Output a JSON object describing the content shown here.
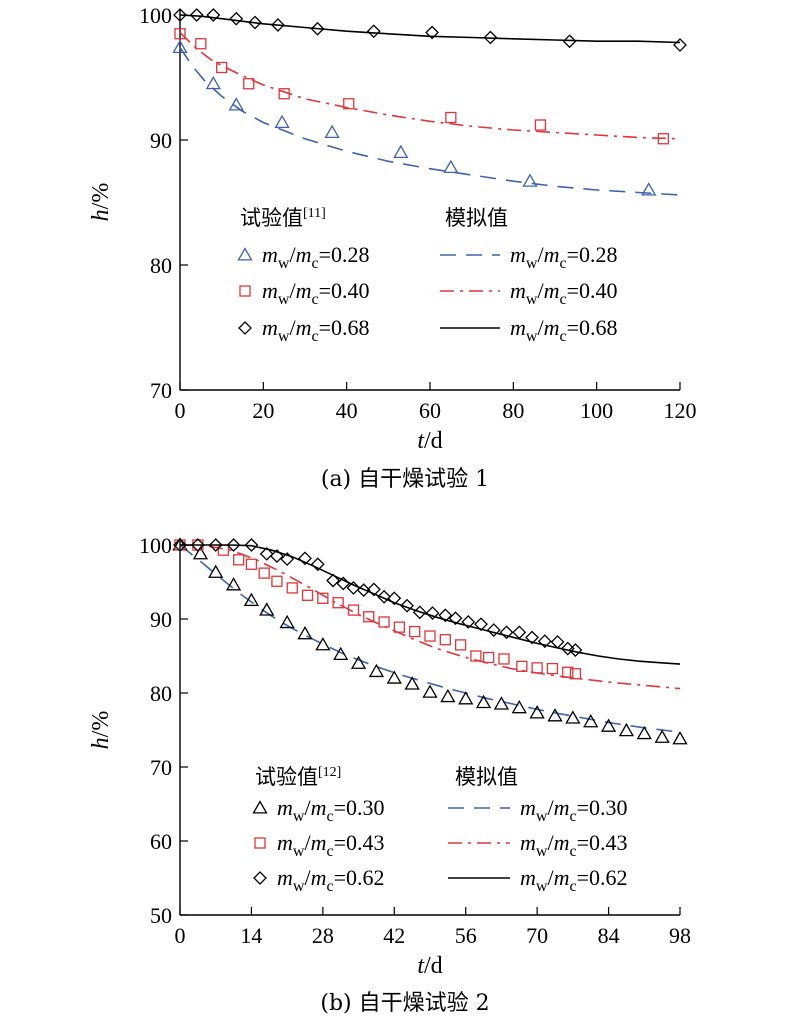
{
  "colors": {
    "blue": "#3f63b0",
    "red": "#e0353a",
    "black": "#000000"
  },
  "chart_data": [
    {
      "type": "line",
      "caption": "(a) 自干燥试验 1",
      "xlabel": {
        "var": "t",
        "unit": "/d"
      },
      "ylabel": {
        "var": "h",
        "unit": "/%"
      },
      "xlim": [
        0,
        120
      ],
      "ylim": [
        70,
        100
      ],
      "xticks": [
        0,
        20,
        40,
        60,
        80,
        100,
        120
      ],
      "yticks": [
        70,
        80,
        90,
        100
      ],
      "legend": {
        "placement": "center-left",
        "exp_title": "试验值",
        "exp_ref": "[11]",
        "sim_title": "模拟值"
      },
      "series": [
        {
          "name": "mw/mc=0.28",
          "label_m1": "m",
          "label_s1": "w",
          "label_m2": "m",
          "label_s2": "c",
          "label_val": "=0.28",
          "color": "blue",
          "marker": "triangle",
          "linestyle": "dash",
          "exp": [
            [
              0,
              97.4
            ],
            [
              8,
              94.5
            ],
            [
              13.5,
              92.8
            ],
            [
              24.5,
              91.4
            ],
            [
              36.5,
              90.6
            ],
            [
              53,
              89
            ],
            [
              65,
              87.8
            ],
            [
              84,
              86.7
            ],
            [
              112.5,
              86
            ]
          ],
          "sim": [
            [
              0,
              97.4
            ],
            [
              3,
              95.9
            ],
            [
              6,
              94.7
            ],
            [
              10,
              93.5
            ],
            [
              15,
              92.3
            ],
            [
              20,
              91.4
            ],
            [
              30,
              90.1
            ],
            [
              40,
              89.1
            ],
            [
              50,
              88.3
            ],
            [
              60,
              87.7
            ],
            [
              70,
              87.2
            ],
            [
              80,
              86.7
            ],
            [
              90,
              86.3
            ],
            [
              100,
              86
            ],
            [
              110,
              85.8
            ],
            [
              120,
              85.6
            ]
          ]
        },
        {
          "name": "mw/mc=0.40",
          "label_m1": "m",
          "label_s1": "w",
          "label_m2": "m",
          "label_s2": "c",
          "label_val": "=0.40",
          "color": "red",
          "marker": "square",
          "linestyle": "dashdot",
          "exp": [
            [
              0,
              98.5
            ],
            [
              5,
              97.7
            ],
            [
              10,
              95.8
            ],
            [
              16.5,
              94.5
            ],
            [
              25,
              93.7
            ],
            [
              40.5,
              92.9
            ],
            [
              65,
              91.8
            ],
            [
              86.5,
              91.2
            ],
            [
              116,
              90.1
            ]
          ],
          "sim": [
            [
              0,
              98.6
            ],
            [
              4,
              97.3
            ],
            [
              8,
              96.3
            ],
            [
              14,
              95.3
            ],
            [
              20,
              94.4
            ],
            [
              30,
              93.3
            ],
            [
              40,
              92.6
            ],
            [
              50,
              92
            ],
            [
              60,
              91.5
            ],
            [
              70,
              91.1
            ],
            [
              80,
              90.8
            ],
            [
              90,
              90.6
            ],
            [
              100,
              90.4
            ],
            [
              110,
              90.2
            ],
            [
              120,
              90.1
            ]
          ]
        },
        {
          "name": "mw/mc=0.68",
          "label_m1": "m",
          "label_s1": "w",
          "label_m2": "m",
          "label_s2": "c",
          "label_val": "=0.68",
          "color": "black",
          "marker": "diamond",
          "linestyle": "solid",
          "exp": [
            [
              0,
              100
            ],
            [
              4,
              100
            ],
            [
              8,
              100
            ],
            [
              13.5,
              99.7
            ],
            [
              18,
              99.4
            ],
            [
              23.5,
              99.2
            ],
            [
              33,
              98.9
            ],
            [
              46.5,
              98.7
            ],
            [
              60.5,
              98.6
            ],
            [
              74.5,
              98.2
            ],
            [
              93.5,
              97.9
            ],
            [
              120,
              97.6
            ]
          ],
          "sim": [
            [
              0,
              100
            ],
            [
              5,
              99.9
            ],
            [
              10,
              99.7
            ],
            [
              20,
              99.3
            ],
            [
              30,
              99
            ],
            [
              40,
              98.7
            ],
            [
              50,
              98.5
            ],
            [
              60,
              98.3
            ],
            [
              70,
              98.2
            ],
            [
              80,
              98.1
            ],
            [
              90,
              98
            ],
            [
              100,
              97.9
            ],
            [
              110,
              97.9
            ],
            [
              120,
              97.8
            ]
          ]
        }
      ]
    },
    {
      "type": "line",
      "caption": "(b) 自干燥试验 2",
      "xlabel": {
        "var": "t",
        "unit": "/d"
      },
      "ylabel": {
        "var": "h",
        "unit": "/%"
      },
      "xlim": [
        0,
        98
      ],
      "ylim": [
        50,
        100
      ],
      "xticks": [
        0,
        14,
        28,
        42,
        56,
        70,
        84,
        98
      ],
      "yticks": [
        50,
        60,
        70,
        80,
        90,
        100
      ],
      "legend": {
        "placement": "bottom-left",
        "exp_title": "试验值",
        "exp_ref": "[12]",
        "sim_title": "模拟值"
      },
      "series": [
        {
          "name": "mw/mc=0.30",
          "label_m1": "m",
          "label_s1": "w",
          "label_m2": "m",
          "label_s2": "c",
          "label_val": "=0.30",
          "color": "black",
          "marker": "triangle",
          "linestyle": "dash",
          "line_color": "blue",
          "exp": [
            [
              0,
              100
            ],
            [
              4,
              98.8
            ],
            [
              7,
              96.3
            ],
            [
              10.5,
              94.6
            ],
            [
              14,
              92.5
            ],
            [
              17,
              91.2
            ],
            [
              21,
              89.5
            ],
            [
              24.5,
              88
            ],
            [
              28,
              86.5
            ],
            [
              31.5,
              85.2
            ],
            [
              35,
              84
            ],
            [
              38.5,
              82.9
            ],
            [
              42,
              82
            ],
            [
              45.5,
              81.2
            ],
            [
              49,
              80.1
            ],
            [
              52.5,
              79.5
            ],
            [
              56,
              79.2
            ],
            [
              59.5,
              78.7
            ],
            [
              63,
              78.5
            ],
            [
              66.5,
              78
            ],
            [
              70,
              77.3
            ],
            [
              73.5,
              76.9
            ],
            [
              77,
              76.6
            ],
            [
              80.5,
              76.1
            ],
            [
              84,
              75.5
            ],
            [
              87.5,
              74.9
            ],
            [
              91,
              74.5
            ],
            [
              94.5,
              74
            ],
            [
              98,
              73.8
            ]
          ],
          "sim": [
            [
              0,
              100
            ],
            [
              4,
              97.8
            ],
            [
              8,
              95.5
            ],
            [
              12,
              93.3
            ],
            [
              16,
              91.3
            ],
            [
              20,
              89.5
            ],
            [
              24,
              88
            ],
            [
              28,
              86.6
            ],
            [
              32,
              85.3
            ],
            [
              36,
              84.2
            ],
            [
              40,
              83.2
            ],
            [
              44,
              82.3
            ],
            [
              48,
              81.5
            ],
            [
              52,
              80.7
            ],
            [
              56,
              80
            ],
            [
              60,
              79.3
            ],
            [
              64,
              78.7
            ],
            [
              68,
              78.1
            ],
            [
              72,
              77.5
            ],
            [
              76,
              77
            ],
            [
              80,
              76.5
            ],
            [
              84,
              76
            ],
            [
              88,
              75.6
            ],
            [
              92,
              75.2
            ],
            [
              98,
              74.7
            ]
          ]
        },
        {
          "name": "mw/mc=0.43",
          "label_m1": "m",
          "label_s1": "w",
          "label_m2": "m",
          "label_s2": "c",
          "label_val": "=0.43",
          "color": "red",
          "marker": "square",
          "linestyle": "dashdot",
          "exp": [
            [
              0,
              100
            ],
            [
              3.5,
              100
            ],
            [
              8.5,
              99.3
            ],
            [
              11.5,
              98
            ],
            [
              14,
              97.4
            ],
            [
              16.5,
              96.2
            ],
            [
              19,
              95.1
            ],
            [
              22,
              94.2
            ],
            [
              25,
              93.2
            ],
            [
              28,
              92.8
            ],
            [
              31,
              92.2
            ],
            [
              34,
              91.2
            ],
            [
              37,
              90.3
            ],
            [
              40,
              89.6
            ],
            [
              43,
              88.9
            ],
            [
              46,
              88.3
            ],
            [
              49,
              87.7
            ],
            [
              52,
              87.2
            ],
            [
              55,
              86.5
            ],
            [
              58,
              85
            ],
            [
              60.5,
              84.8
            ],
            [
              63.5,
              84.6
            ],
            [
              67,
              83.6
            ],
            [
              70,
              83.4
            ],
            [
              73,
              83.3
            ],
            [
              76,
              82.8
            ],
            [
              77.5,
              82.6
            ]
          ],
          "sim": [
            [
              0,
              100
            ],
            [
              5,
              99.9
            ],
            [
              10,
              99.3
            ],
            [
              15,
              98
            ],
            [
              20,
              96.3
            ],
            [
              25,
              94.4
            ],
            [
              30,
              92.4
            ],
            [
              35,
              90.6
            ],
            [
              40,
              89
            ],
            [
              45,
              87.5
            ],
            [
              50,
              86.1
            ],
            [
              55,
              85
            ],
            [
              60,
              84.1
            ],
            [
              65,
              83.3
            ],
            [
              70,
              82.7
            ],
            [
              75,
              82.2
            ],
            [
              80,
              81.8
            ],
            [
              85,
              81.4
            ],
            [
              90,
              81.1
            ],
            [
              98,
              80.6
            ]
          ]
        },
        {
          "name": "mw/mc=0.62",
          "label_m1": "m",
          "label_s1": "w",
          "label_m2": "m",
          "label_s2": "c",
          "label_val": "=0.62",
          "color": "black",
          "marker": "diamond",
          "linestyle": "solid",
          "exp": [
            [
              0,
              100
            ],
            [
              3.5,
              100
            ],
            [
              7,
              100
            ],
            [
              10.5,
              100
            ],
            [
              14,
              100
            ],
            [
              17,
              98.8
            ],
            [
              19,
              98.5
            ],
            [
              21,
              98.1
            ],
            [
              24.5,
              98.2
            ],
            [
              27,
              97.4
            ],
            [
              30,
              95.2
            ],
            [
              32,
              94.8
            ],
            [
              34,
              94.2
            ],
            [
              36,
              93.9
            ],
            [
              38,
              94
            ],
            [
              40,
              93
            ],
            [
              42,
              92.8
            ],
            [
              44.5,
              91.8
            ],
            [
              47,
              90.9
            ],
            [
              49.5,
              90.8
            ],
            [
              52,
              90.5
            ],
            [
              54,
              90.1
            ],
            [
              56.5,
              89.6
            ],
            [
              59,
              89.3
            ],
            [
              61.5,
              88.5
            ],
            [
              64,
              88.2
            ],
            [
              66.5,
              88.2
            ],
            [
              69,
              87.5
            ],
            [
              71.5,
              87
            ],
            [
              74,
              86.9
            ],
            [
              76,
              86
            ],
            [
              77.5,
              85.8
            ]
          ],
          "sim": [
            [
              0,
              100
            ],
            [
              5,
              100
            ],
            [
              10,
              100
            ],
            [
              14,
              99.9
            ],
            [
              18,
              99.3
            ],
            [
              22,
              98.4
            ],
            [
              26,
              97.2
            ],
            [
              30,
              95.9
            ],
            [
              34,
              94.6
            ],
            [
              38,
              93.4
            ],
            [
              42,
              92.2
            ],
            [
              46,
              91.2
            ],
            [
              50,
              90.3
            ],
            [
              54,
              89.5
            ],
            [
              58,
              88.8
            ],
            [
              62,
              88.1
            ],
            [
              66,
              87.4
            ],
            [
              70,
              86.7
            ],
            [
              74,
              86.1
            ],
            [
              78,
              85.5
            ],
            [
              82,
              85
            ],
            [
              86,
              84.6
            ],
            [
              90,
              84.3
            ],
            [
              94,
              84.1
            ],
            [
              98,
              83.9
            ]
          ]
        }
      ]
    }
  ]
}
